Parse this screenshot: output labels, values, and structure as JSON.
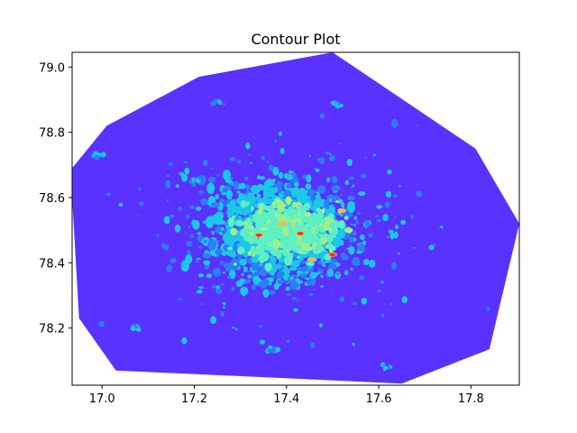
{
  "chart_data": {
    "type": "contour",
    "title": "Contour Plot",
    "xlabel": "",
    "ylabel": "",
    "xlim": [
      16.935,
      17.905
    ],
    "ylim": [
      78.025,
      79.045
    ],
    "x_ticks": [
      "17.0",
      "17.2",
      "17.4",
      "17.6",
      "17.8"
    ],
    "y_ticks": [
      "78.2",
      "78.4",
      "78.6",
      "78.8",
      "79.0"
    ],
    "colormap": "rainbow",
    "grid": false,
    "legend": "none",
    "hull": [
      [
        16.935,
        78.69
      ],
      [
        17.01,
        78.82
      ],
      [
        17.21,
        78.97
      ],
      [
        17.5,
        79.045
      ],
      [
        17.81,
        78.75
      ],
      [
        17.905,
        78.52
      ],
      [
        17.84,
        78.135
      ],
      [
        17.65,
        78.03
      ],
      [
        17.03,
        78.07
      ],
      [
        16.95,
        78.23
      ],
      [
        16.935,
        78.6
      ]
    ],
    "core_center": [
      17.38,
      78.5
    ],
    "hotspots": [
      {
        "x": 17.34,
        "y": 78.485,
        "level": "red"
      },
      {
        "x": 17.43,
        "y": 78.49,
        "level": "red"
      },
      {
        "x": 17.5,
        "y": 78.425,
        "level": "red"
      },
      {
        "x": 17.52,
        "y": 78.56,
        "level": "orange"
      },
      {
        "x": 17.455,
        "y": 78.41,
        "level": "orange"
      },
      {
        "x": 17.39,
        "y": 78.52,
        "level": "orange"
      }
    ],
    "satellites": [
      {
        "x": 17.07,
        "y": 78.205
      },
      {
        "x": 17.25,
        "y": 78.89
      },
      {
        "x": 17.2,
        "y": 78.65
      },
      {
        "x": 17.615,
        "y": 78.08
      },
      {
        "x": 17.51,
        "y": 78.885
      },
      {
        "x": 17.37,
        "y": 78.135
      },
      {
        "x": 16.99,
        "y": 78.73
      }
    ],
    "levels": [
      "#5a32ff",
      "#2b7ff7",
      "#1cc7e8",
      "#5ef0c4",
      "#9ff08a",
      "#ffb347",
      "#ff2b1a"
    ]
  }
}
